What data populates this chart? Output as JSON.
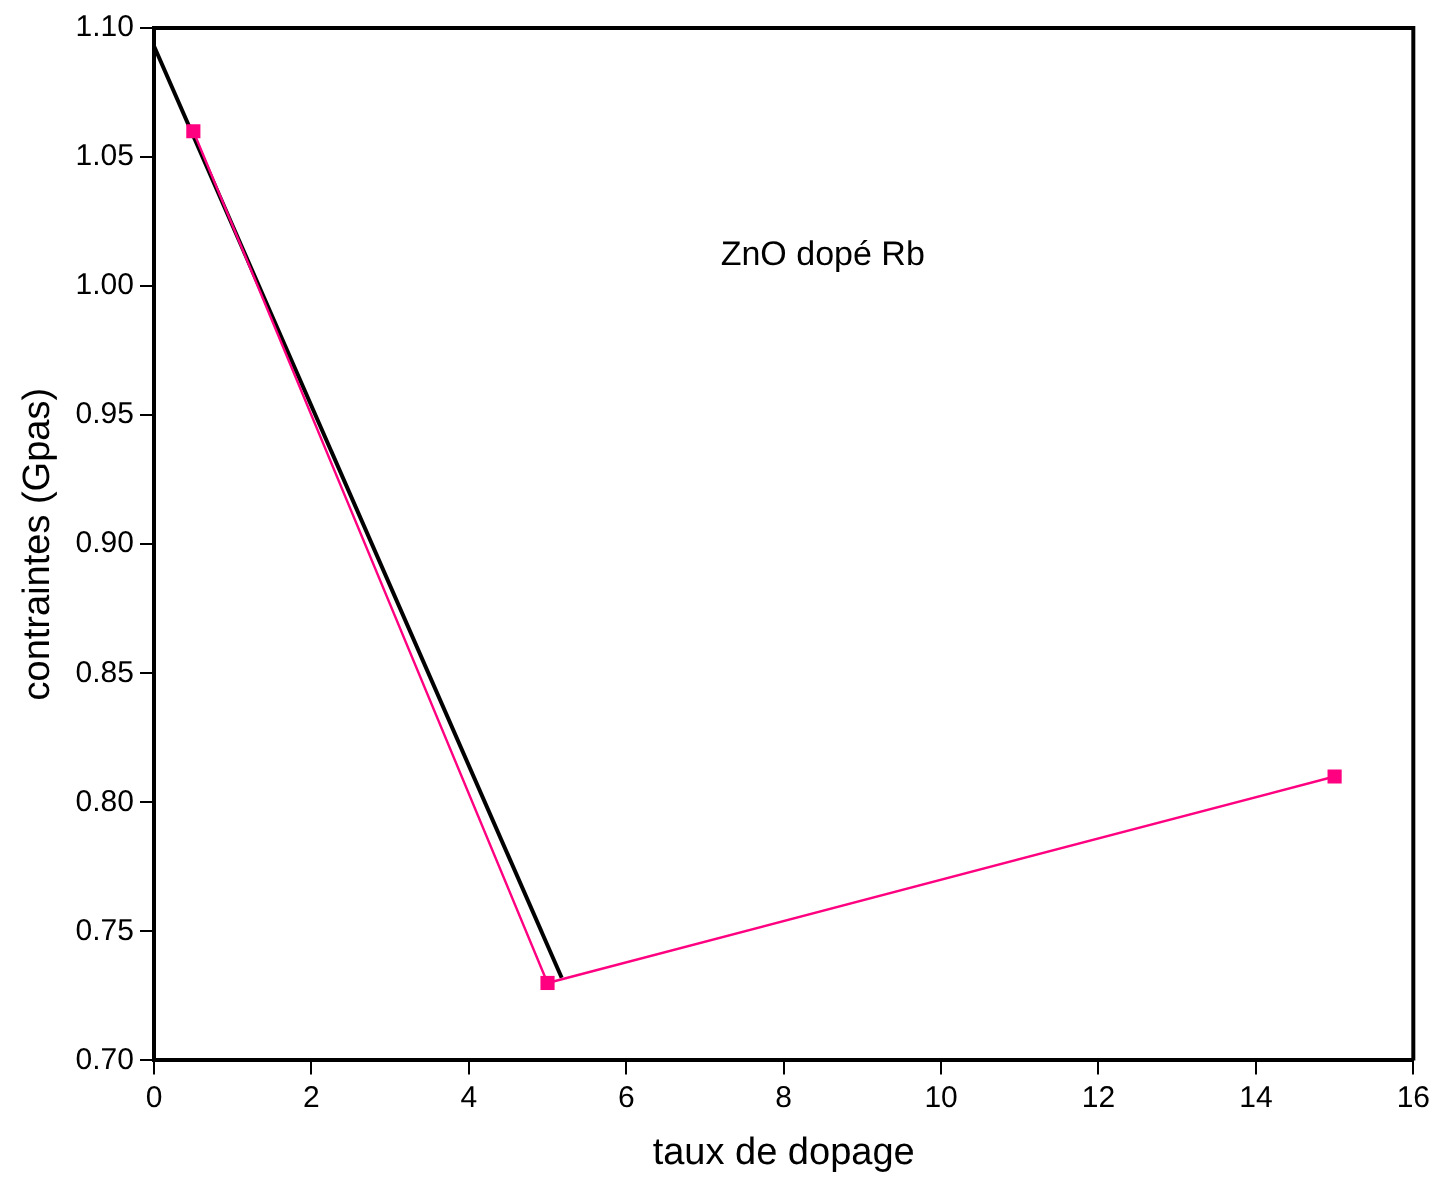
{
  "chart_data": {
    "type": "line",
    "xlabel": "taux de dopage",
    "ylabel": "contraintes (Gpas)",
    "annotations": [
      "ZnO dopé Rb"
    ],
    "series": [
      {
        "x": [
          0.5,
          5,
          15
        ],
        "values": [
          1.06,
          0.73,
          0.81
        ],
        "color": "#ff0080",
        "marker": "square"
      },
      {
        "x": [
          0,
          5.18
        ],
        "values": [
          1.093,
          0.732
        ],
        "color": "#000000",
        "marker": "none"
      }
    ],
    "xlim": [
      0,
      16
    ],
    "xticks": [
      0,
      2,
      4,
      6,
      8,
      10,
      12,
      14,
      16
    ],
    "ylim": [
      0.7,
      1.1
    ],
    "yticks": [
      {
        "value": 0.7,
        "label": "0.70"
      },
      {
        "value": 0.75,
        "label": "0.75"
      },
      {
        "value": 0.8,
        "label": "0.80"
      },
      {
        "value": 0.85,
        "label": "0.85"
      },
      {
        "value": 0.9,
        "label": "0.90"
      },
      {
        "value": 0.95,
        "label": "0.95"
      },
      {
        "value": 1.0,
        "label": "1.00"
      },
      {
        "value": 1.05,
        "label": "1.05"
      },
      {
        "value": 1.1,
        "label": "1.10"
      }
    ],
    "grid": false,
    "legend": false
  }
}
